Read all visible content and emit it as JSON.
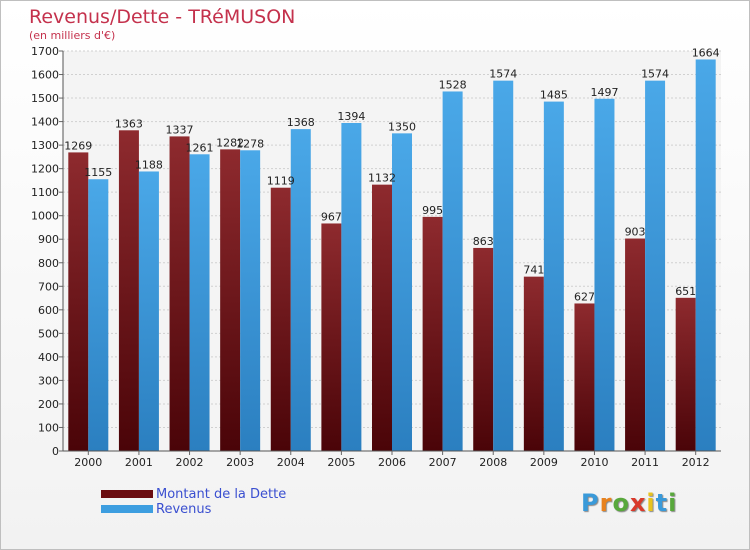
{
  "title": "Revenus/Dette - TRéMUSON",
  "subtitle": "(en milliers d'€)",
  "chart_data": {
    "type": "bar",
    "title": "Revenus/Dette - TRéMUSON",
    "ylabel": "(en milliers d'€)",
    "xlabel": "",
    "ylim": [
      0,
      1700
    ],
    "ytick_step": 100,
    "grid": true,
    "legend_position": "bottom-left",
    "categories": [
      "2000",
      "2001",
      "2002",
      "2003",
      "2004",
      "2005",
      "2006",
      "2007",
      "2008",
      "2009",
      "2010",
      "2011",
      "2012"
    ],
    "series": [
      {
        "name": "Montant de la Dette",
        "color": "#7a1e22",
        "values": [
          1269,
          1363,
          1337,
          1282,
          1119,
          967,
          1132,
          995,
          863,
          741,
          627,
          903,
          651
        ]
      },
      {
        "name": "Revenus",
        "color": "#3d9ee0",
        "values": [
          1155,
          1188,
          1261,
          1278,
          1368,
          1394,
          1350,
          1528,
          1574,
          1485,
          1497,
          1574,
          1664
        ]
      }
    ]
  },
  "legend": {
    "debt_label": "Montant de la Dette",
    "revenue_label": "Revenus",
    "debt_color": "#6b0c10",
    "revenue_color": "#3d9ee0"
  },
  "logo": {
    "letters": [
      "P",
      "r",
      "o",
      "x",
      "i",
      "t",
      "i"
    ],
    "colors": [
      "#3a9ad9",
      "#e8821e",
      "#58a83c",
      "#d93a2b",
      "#e8c31e",
      "#3a9ad9",
      "#58a83c"
    ]
  }
}
